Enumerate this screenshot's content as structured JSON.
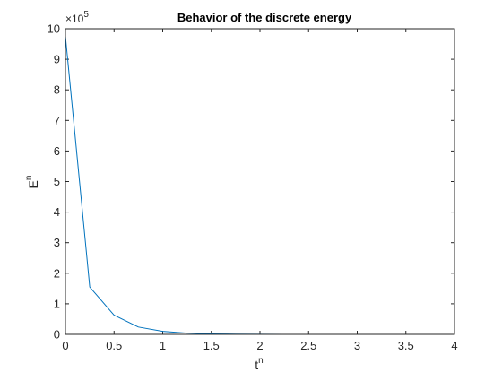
{
  "chart_data": {
    "type": "line",
    "title": "Behavior of the discrete energy",
    "xlabel": {
      "base": "t",
      "sup": "n"
    },
    "ylabel": {
      "base": "E",
      "sup": "n"
    },
    "y_multiplier": {
      "prefix": "×10",
      "exp": "5"
    },
    "xlim": [
      0,
      4
    ],
    "ylim": [
      0,
      10
    ],
    "x_ticks": [
      0,
      0.5,
      1,
      1.5,
      2,
      2.5,
      3,
      3.5,
      4
    ],
    "x_tick_labels": [
      "0",
      "0.5",
      "1",
      "1.5",
      "2",
      "2.5",
      "3",
      "3.5",
      "4"
    ],
    "y_ticks": [
      0,
      1,
      2,
      3,
      4,
      5,
      6,
      7,
      8,
      9,
      10
    ],
    "y_tick_labels": [
      "0",
      "1",
      "2",
      "3",
      "4",
      "5",
      "6",
      "7",
      "8",
      "9",
      "10"
    ],
    "grid": false,
    "box": true,
    "series": [
      {
        "color": "#0072bd",
        "x": [
          0,
          0.25,
          0.5,
          0.75,
          1.0,
          1.25,
          1.5,
          1.75,
          2.0,
          2.25,
          2.5,
          2.75,
          3.0,
          3.25,
          3.5,
          3.75,
          4.0
        ],
        "y": [
          9.75,
          1.55,
          0.63,
          0.24,
          0.1,
          0.04,
          0.016,
          0.007,
          0.003,
          0.001,
          0.0005,
          0.0002,
          0.0001,
          5e-05,
          2e-05,
          1e-05,
          0.0
        ]
      }
    ]
  }
}
